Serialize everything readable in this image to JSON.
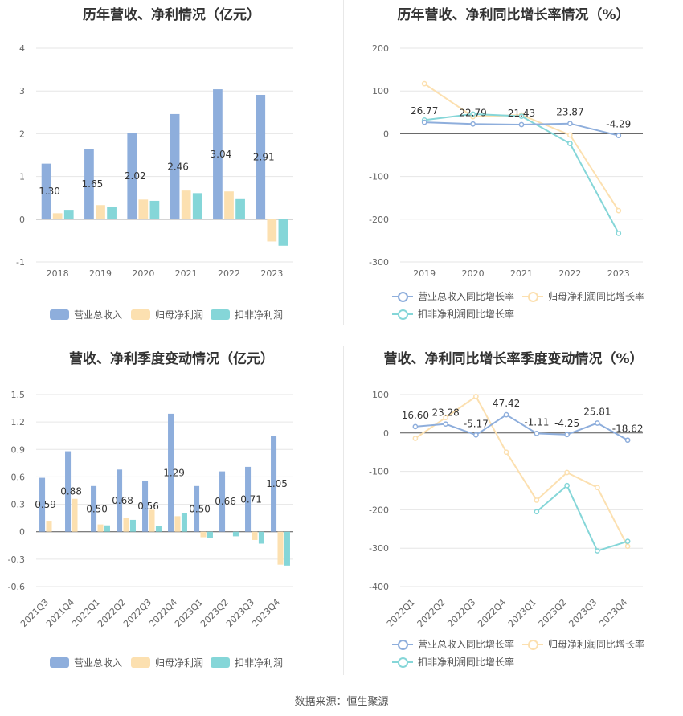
{
  "source": "数据来源：恒生聚源",
  "charts": {
    "annual": {
      "title": "历年营收、净利情况（亿元）",
      "legend": [
        "营业总收入",
        "归母净利润",
        "扣非净利润"
      ]
    },
    "annual_growth": {
      "title": "历年营收、净利同比增长率情况（%）",
      "legend": [
        "营业总收入同比增长率",
        "归母净利润同比增长率",
        "扣非净利润同比增长率"
      ]
    },
    "quarterly": {
      "title": "营收、净利季度变动情况（亿元）",
      "legend": [
        "营业总收入",
        "归母净利润",
        "扣非净利润"
      ]
    },
    "quarterly_growth": {
      "title": "营收、净利同比增长率季度变动情况（%）",
      "legend": [
        "营业总收入同比增长率",
        "归母净利润同比增长率",
        "扣非净利润同比增长率"
      ]
    }
  },
  "colors": {
    "revenue": "#8eaedc",
    "parent": "#fce0b0",
    "nonrecurring": "#85d6d8"
  },
  "chart_data": [
    {
      "type": "bar",
      "title": "历年营收、净利情况（亿元）",
      "categories": [
        "2018",
        "2019",
        "2020",
        "2021",
        "2022",
        "2023"
      ],
      "series": [
        {
          "name": "营业总收入",
          "values": [
            1.3,
            1.65,
            2.02,
            2.46,
            3.04,
            2.91
          ],
          "labels": [
            "1.30",
            "1.65",
            "2.02",
            "2.46",
            "3.04",
            "2.91"
          ]
        },
        {
          "name": "归母净利润",
          "values": [
            0.14,
            0.33,
            0.46,
            0.67,
            0.65,
            -0.52
          ]
        },
        {
          "name": "扣非净利润",
          "values": [
            0.22,
            0.29,
            0.43,
            0.61,
            0.47,
            -0.62
          ]
        }
      ],
      "ylim": [
        -1,
        4
      ],
      "yticks": [
        -1,
        0,
        1,
        2,
        3,
        4
      ],
      "legend_position": "bottom"
    },
    {
      "type": "line",
      "title": "历年营收、净利同比增长率情况（%）",
      "categories": [
        "2019",
        "2020",
        "2021",
        "2022",
        "2023"
      ],
      "series": [
        {
          "name": "营业总收入同比增长率",
          "values": [
            26.77,
            22.79,
            21.43,
            23.87,
            -4.29
          ],
          "labels": [
            "26.77",
            "22.79",
            "21.43",
            "23.87",
            "-4.29"
          ]
        },
        {
          "name": "归母净利润同比增长率",
          "values": [
            117,
            40,
            44,
            -3,
            -180
          ]
        },
        {
          "name": "扣非净利润同比增长率",
          "values": [
            32,
            46,
            41,
            -23,
            -233
          ]
        }
      ],
      "ylim": [
        -300,
        200
      ],
      "yticks": [
        -300,
        -200,
        -100,
        0,
        100,
        200
      ],
      "legend_position": "bottom"
    },
    {
      "type": "bar",
      "title": "营收、净利季度变动情况（亿元）",
      "categories": [
        "2021Q3",
        "2021Q4",
        "2022Q1",
        "2022Q2",
        "2022Q3",
        "2022Q4",
        "2023Q1",
        "2023Q2",
        "2023Q3",
        "2023Q4"
      ],
      "series": [
        {
          "name": "营业总收入",
          "values": [
            0.59,
            0.88,
            0.5,
            0.68,
            0.56,
            1.29,
            0.5,
            0.66,
            0.71,
            1.05
          ],
          "labels": [
            "0.59",
            "0.88",
            "0.50",
            "0.68",
            "0.56",
            "1.29",
            "0.50",
            "0.66",
            "0.71",
            "1.05"
          ]
        },
        {
          "name": "归母净利润",
          "values": [
            0.12,
            0.36,
            0.08,
            0.15,
            0.24,
            0.17,
            -0.06,
            0.0,
            -0.09,
            -0.36
          ]
        },
        {
          "name": "扣非净利润",
          "values": [
            0.0,
            0.0,
            0.07,
            0.13,
            0.06,
            0.2,
            -0.07,
            -0.05,
            -0.13,
            -0.37
          ]
        }
      ],
      "ylim": [
        -0.6,
        1.5
      ],
      "yticks": [
        "-0.6",
        "-0.3",
        "0",
        "0.3",
        "0.6",
        "0.9",
        "1.2",
        "1.5"
      ],
      "legend_position": "bottom"
    },
    {
      "type": "line",
      "title": "营收、净利同比增长率季度变动情况（%）",
      "categories": [
        "2022Q1",
        "2022Q2",
        "2022Q3",
        "2022Q4",
        "2023Q1",
        "2023Q2",
        "2023Q3",
        "2023Q4"
      ],
      "series": [
        {
          "name": "营业总收入同比增长率",
          "values": [
            16.6,
            23.28,
            -5.17,
            47.42,
            -1.11,
            -4.25,
            25.81,
            -18.62
          ],
          "labels": [
            "16.60",
            "23.28",
            "-5.17",
            "47.42",
            "-1.11",
            "-4.25",
            "25.81",
            "-18.62"
          ]
        },
        {
          "name": "归母净利润同比增长率",
          "values": [
            -14,
            40,
            95,
            -50,
            -175,
            -103,
            -142,
            -295
          ]
        },
        {
          "name": "扣非净利润同比增长率",
          "values": [
            null,
            null,
            null,
            null,
            -205,
            -137,
            -307,
            -282
          ]
        }
      ],
      "ylim": [
        -400,
        100
      ],
      "yticks": [
        -400,
        -300,
        -200,
        -100,
        0,
        100
      ],
      "legend_position": "bottom"
    }
  ]
}
